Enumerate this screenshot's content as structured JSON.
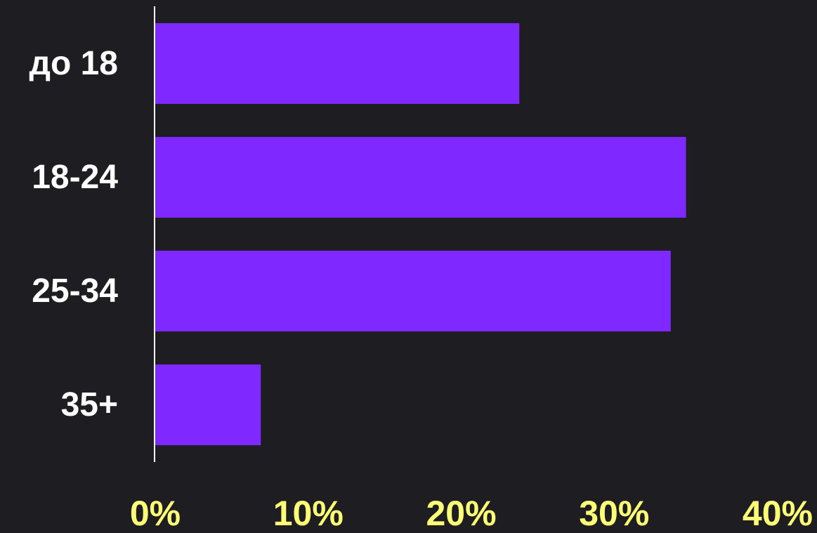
{
  "chart_data": {
    "type": "bar",
    "orientation": "horizontal",
    "categories": [
      "до 18",
      "18-24",
      "25-34",
      "35+"
    ],
    "values": [
      23.8,
      34.7,
      33.7,
      6.9
    ],
    "unit": "%",
    "xlim": [
      0,
      40
    ],
    "x_ticks": [
      0,
      10,
      20,
      30,
      40
    ],
    "x_tick_labels": [
      "0%",
      "10%",
      "20%",
      "30%",
      "40%"
    ],
    "title": "",
    "xlabel": "",
    "ylabel": "",
    "grid": false,
    "legend": "none",
    "colors": {
      "background": "#1e1d22",
      "bar": "#7f28ff",
      "axis_line": "#ffffff",
      "category_label": "#ffffff",
      "tick_label": "#ffff77"
    }
  }
}
